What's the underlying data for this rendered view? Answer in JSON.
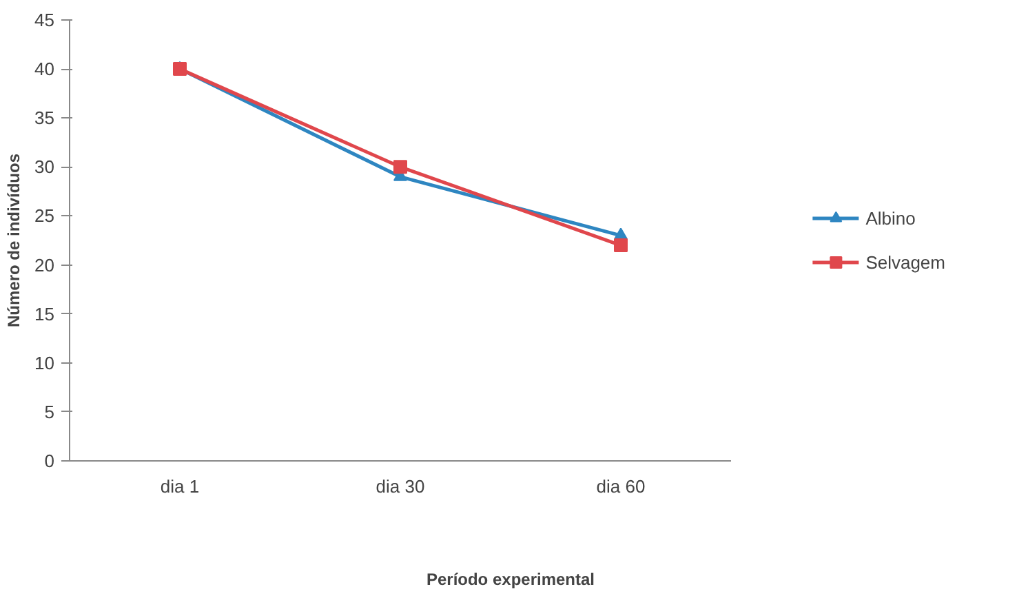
{
  "chart_data": {
    "type": "line",
    "xlabel": "Período experimental",
    "ylabel": "Número de indivíduos",
    "categories": [
      "dia 1",
      "dia 30",
      "dia 60"
    ],
    "series": [
      {
        "name": "Albino",
        "color": "#2e86c1",
        "values": [
          40,
          29,
          23
        ],
        "marker": "triangle"
      },
      {
        "name": "Selvagem",
        "color": "#e0474c",
        "values": [
          40,
          30,
          22
        ],
        "marker": "square"
      }
    ],
    "ylim": [
      0,
      45
    ],
    "yticks": [
      0,
      5,
      10,
      15,
      20,
      25,
      30,
      35,
      40,
      45
    ],
    "grid": false,
    "legend": "right",
    "line_style": "solid"
  }
}
